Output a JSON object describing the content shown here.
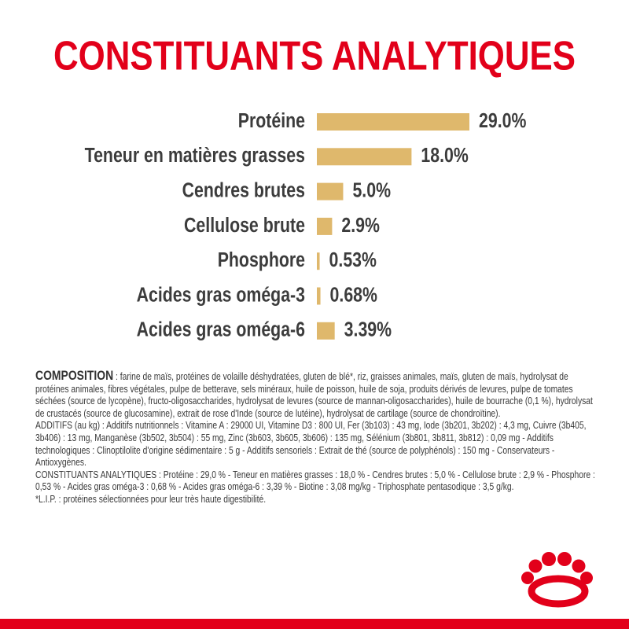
{
  "chart_data": {
    "type": "bar",
    "orientation": "horizontal",
    "title": "CONSTITUANTS ANALYTIQUES",
    "categories": [
      "Protéine",
      "Teneur en matières grasses",
      "Cendres brutes",
      "Cellulose brute",
      "Phosphore",
      "Acides gras oméga-3",
      "Acides gras oméga-6"
    ],
    "values": [
      29.0,
      18.0,
      5.0,
      2.9,
      0.53,
      0.68,
      3.39
    ],
    "value_labels": [
      "29.0%",
      "18.0%",
      "5.0%",
      "2.9%",
      "0.53%",
      "0.68%",
      "3.39%"
    ],
    "color": "#dfb86c"
  },
  "composition": {
    "heading": "COMPOSITION",
    "paragraphs": [
      " : farine de maïs, protéines de volaille déshydratées, gluten de blé*, riz, graisses animales, maïs, gluten de maïs, hydrolysat de protéines animales, fibres végétales, pulpe de betterave, sels minéraux, huile de poisson, huile de soja, produits dérivés de levures, pulpe de tomates séchées (source de lycopène), fructo-oligosaccharides, hydrolysat de levures (source de mannan-oligosaccharides), huile de bourrache (0,1 %), hydrolysat de crustacés (source de glucosamine), extrait de rose d'Inde (source de lutéine), hydrolysat de cartilage (source de chondroïtine).",
      "ADDITIFS (au kg) : Additifs nutritionnels : Vitamine A : 29000 UI, Vitamine D3 : 800 UI, Fer (3b103) : 43 mg, Iode (3b201, 3b202) : 4,3 mg, Cuivre (3b405, 3b406) : 13 mg, Manganèse (3b502, 3b504) : 55 mg, Zinc (3b603, 3b605, 3b606) : 135 mg, Sélénium (3b801, 3b811, 3b812) : 0,09 mg - Additifs technologiques : Clinoptilolite d'origine sédimentaire : 5 g - Additifs sensoriels : Extrait de thé (source de polyphénols) : 150 mg - Conservateurs - Antioxygènes.",
      "CONSTITUANTS ANALYTIQUES : Protéine : 29,0 % - Teneur en matières grasses : 18,0 % - Cendres brutes : 5,0 % - Cellulose brute : 2,9 % - Phosphore : 0,53 % - Acides gras oméga-3 : 0,68 % - Acides gras oméga-6 : 3,39 % - Biotine : 3,08 mg/kg - Triphosphate pentasodique : 3,5 g/kg.",
      "*L.I.P. : protéines sélectionnées pour leur très haute digestibilité."
    ]
  }
}
